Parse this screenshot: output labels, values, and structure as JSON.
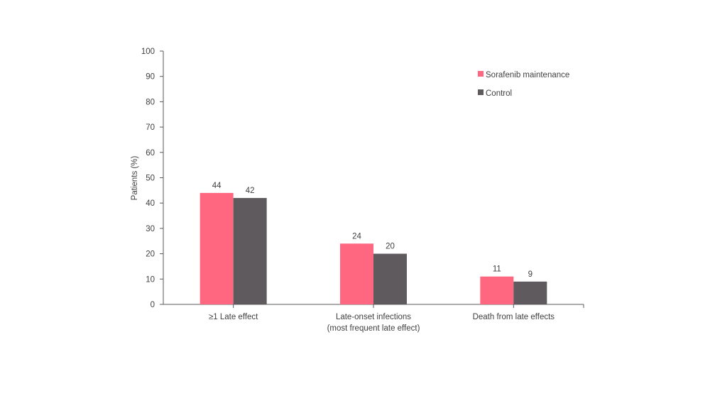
{
  "chart_data": {
    "type": "bar",
    "title": "",
    "xlabel": "",
    "ylabel": "Patients (%)",
    "ylim": [
      0,
      100
    ],
    "yticks": [
      0,
      10,
      20,
      30,
      40,
      50,
      60,
      70,
      80,
      90,
      100
    ],
    "grid": false,
    "legend_position": "top-right",
    "categories": [
      [
        "≥1 Late effect"
      ],
      [
        "Late-onset infections",
        "(most frequent late effect)"
      ],
      [
        "Death from late effects"
      ]
    ],
    "series": [
      {
        "name": "Sorafenib maintenance",
        "color": "#FF6680",
        "values": [
          44,
          24,
          11
        ]
      },
      {
        "name": "Control",
        "color": "#5F5A5D",
        "values": [
          42,
          20,
          9
        ]
      }
    ]
  }
}
